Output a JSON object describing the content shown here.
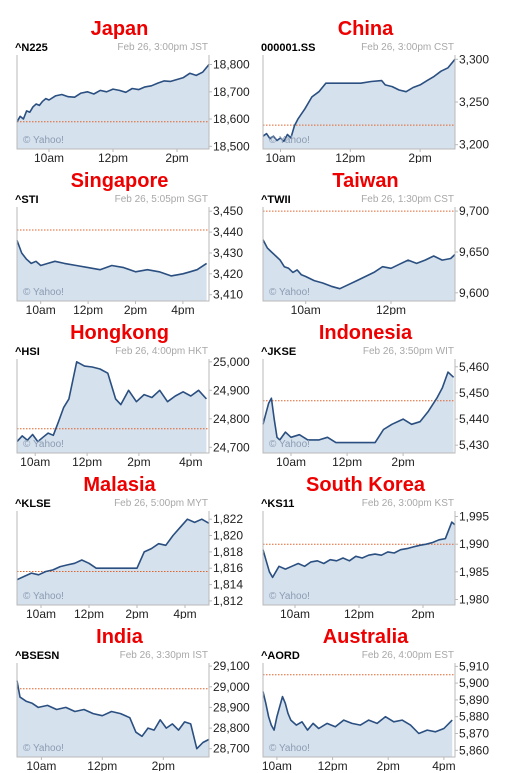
{
  "credit": "© Yahoo!",
  "colors": {
    "line": "#2a4f80",
    "fill": "#d5e1ec",
    "reference": "#e0632e",
    "title": "#ee0000",
    "frame": "#b9b9b9"
  },
  "chart_data": [
    {
      "type": "area",
      "country": "Japan",
      "symbol": "^N225",
      "stamp_date": "Feb 26, 3:00pm",
      "stamp_tz": "JST",
      "x_ticks": [
        {
          "label": "10am",
          "x": 10
        },
        {
          "label": "12pm",
          "x": 12
        },
        {
          "label": "2pm",
          "x": 14
        }
      ],
      "y_ticks": [
        18500,
        18600,
        18700,
        18800
      ],
      "y_tick_labels": [
        "18,500",
        "18,600",
        "18,700",
        "18,800"
      ],
      "ylim": [
        18490,
        18835
      ],
      "xlim": [
        9,
        15
      ],
      "reference": 18590,
      "x": [
        9.0,
        9.1,
        9.2,
        9.3,
        9.4,
        9.5,
        9.6,
        9.7,
        9.8,
        9.9,
        10.0,
        10.2,
        10.4,
        10.6,
        10.8,
        11.0,
        11.2,
        11.4,
        11.6,
        11.8,
        12.0,
        12.2,
        12.4,
        12.6,
        12.8,
        13.0,
        13.2,
        13.4,
        13.6,
        13.8,
        14.0,
        14.2,
        14.4,
        14.6,
        14.8,
        15.0
      ],
      "y": [
        18590,
        18610,
        18600,
        18630,
        18625,
        18645,
        18655,
        18650,
        18665,
        18675,
        18670,
        18685,
        18690,
        18682,
        18680,
        18695,
        18700,
        18692,
        18705,
        18700,
        18710,
        18705,
        18698,
        18712,
        18708,
        18718,
        18722,
        18732,
        18740,
        18738,
        18745,
        18752,
        18768,
        18760,
        18772,
        18800
      ]
    },
    {
      "type": "area",
      "country": "China",
      "symbol": "000001.SS",
      "stamp_date": "Feb 26, 3:00pm",
      "stamp_tz": "CST",
      "x_ticks": [
        {
          "label": "10am",
          "x": 10
        },
        {
          "label": "12pm",
          "x": 12
        },
        {
          "label": "2pm",
          "x": 14
        }
      ],
      "y_ticks": [
        3200,
        3250,
        3300
      ],
      "y_tick_labels": [
        "3,200",
        "3,250",
        "3,300"
      ],
      "ylim": [
        3195,
        3305
      ],
      "xlim": [
        9.5,
        15
      ],
      "reference": 3223,
      "x": [
        9.5,
        9.6,
        9.7,
        9.8,
        9.9,
        10.0,
        10.1,
        10.2,
        10.3,
        10.4,
        10.5,
        10.7,
        10.9,
        11.1,
        11.3,
        11.5,
        11.7,
        12.0,
        12.3,
        12.6,
        12.9,
        13.0,
        13.2,
        13.4,
        13.6,
        13.8,
        14.0,
        14.2,
        14.4,
        14.6,
        14.8,
        15.0
      ],
      "y": [
        3210,
        3213,
        3207,
        3210,
        3205,
        3208,
        3204,
        3212,
        3208,
        3222,
        3230,
        3242,
        3256,
        3262,
        3272,
        3272,
        3272,
        3272,
        3272,
        3274,
        3275,
        3270,
        3268,
        3264,
        3262,
        3267,
        3270,
        3275,
        3280,
        3286,
        3290,
        3300
      ]
    },
    {
      "type": "area",
      "country": "Singapore",
      "symbol": "^STI",
      "stamp_date": "Feb 26, 5:05pm",
      "stamp_tz": "SGT",
      "x_ticks": [
        {
          "label": "10am",
          "x": 10
        },
        {
          "label": "12pm",
          "x": 12
        },
        {
          "label": "2pm",
          "x": 14
        },
        {
          "label": "4pm",
          "x": 16
        }
      ],
      "y_ticks": [
        3410,
        3420,
        3430,
        3440,
        3450
      ],
      "y_tick_labels": [
        "3,410",
        "3,420",
        "3,430",
        "3,440",
        "3,450"
      ],
      "ylim": [
        3407,
        3452
      ],
      "xlim": [
        9,
        17.1
      ],
      "reference": 3441,
      "x": [
        9.0,
        9.2,
        9.4,
        9.6,
        9.8,
        10.0,
        10.3,
        10.6,
        11.0,
        11.5,
        12.0,
        12.5,
        13.0,
        13.5,
        14.0,
        14.5,
        15.0,
        15.5,
        16.0,
        16.3,
        16.6,
        17.0
      ],
      "y": [
        3436,
        3430,
        3427,
        3425,
        3426,
        3424,
        3425,
        3426,
        3425,
        3424,
        3423,
        3422,
        3424,
        3423,
        3421,
        3422,
        3421,
        3419,
        3420,
        3421,
        3422,
        3425
      ]
    },
    {
      "type": "area",
      "country": "Taiwan",
      "symbol": "^TWII",
      "stamp_date": "Feb 26, 1:30pm",
      "stamp_tz": "CST",
      "x_ticks": [
        {
          "label": "10am",
          "x": 10
        },
        {
          "label": "12pm",
          "x": 12
        }
      ],
      "y_ticks": [
        9600,
        9650,
        9700
      ],
      "y_tick_labels": [
        "9,600",
        "9,650",
        "9,700"
      ],
      "ylim": [
        9590,
        9705
      ],
      "xlim": [
        9,
        13.5
      ],
      "reference": 9700,
      "x": [
        9.0,
        9.1,
        9.2,
        9.3,
        9.4,
        9.5,
        9.6,
        9.7,
        9.8,
        9.9,
        10.0,
        10.2,
        10.4,
        10.6,
        10.8,
        11.0,
        11.2,
        11.4,
        11.6,
        11.8,
        12.0,
        12.2,
        12.4,
        12.6,
        12.8,
        13.0,
        13.2,
        13.4,
        13.5
      ],
      "y": [
        9665,
        9655,
        9650,
        9645,
        9640,
        9632,
        9630,
        9625,
        9628,
        9622,
        9620,
        9615,
        9612,
        9608,
        9605,
        9610,
        9615,
        9620,
        9625,
        9632,
        9630,
        9635,
        9640,
        9636,
        9640,
        9645,
        9640,
        9642,
        9647
      ]
    },
    {
      "type": "area",
      "country": "Hongkong",
      "symbol": "^HSI",
      "stamp_date": "Feb 26, 4:00pm",
      "stamp_tz": "HKT",
      "x_ticks": [
        {
          "label": "10am",
          "x": 10
        },
        {
          "label": "12pm",
          "x": 12
        },
        {
          "label": "2pm",
          "x": 14
        },
        {
          "label": "4pm",
          "x": 16
        }
      ],
      "y_ticks": [
        24700,
        24800,
        24900,
        25000
      ],
      "y_tick_labels": [
        "24,700",
        "24,800",
        "24,900",
        "25,000"
      ],
      "ylim": [
        24680,
        25010
      ],
      "xlim": [
        9.3,
        16.7
      ],
      "reference": 24765,
      "x": [
        9.3,
        9.5,
        9.7,
        9.9,
        10.1,
        10.3,
        10.5,
        10.7,
        10.9,
        11.1,
        11.3,
        11.6,
        11.9,
        12.2,
        12.5,
        12.8,
        13.1,
        13.3,
        13.6,
        13.9,
        14.2,
        14.5,
        14.8,
        15.1,
        15.4,
        15.7,
        16.0,
        16.3,
        16.6
      ],
      "y": [
        24720,
        24740,
        24725,
        24745,
        24720,
        24735,
        24750,
        24742,
        24790,
        24840,
        24870,
        25000,
        24985,
        24982,
        24975,
        24960,
        24870,
        24850,
        24900,
        24860,
        24885,
        24875,
        24900,
        24860,
        24880,
        24895,
        24880,
        24900,
        24870
      ]
    },
    {
      "type": "area",
      "country": "Indonesia",
      "symbol": "^JKSE",
      "stamp_date": "Feb 26, 3:50pm",
      "stamp_tz": "WIT",
      "x_ticks": [
        {
          "label": "10am",
          "x": 10
        },
        {
          "label": "12pm",
          "x": 12
        },
        {
          "label": "2pm",
          "x": 14
        }
      ],
      "y_ticks": [
        5430,
        5440,
        5450,
        5460
      ],
      "y_tick_labels": [
        "5,430",
        "5,440",
        "5,450",
        "5,460"
      ],
      "ylim": [
        5427,
        5463
      ],
      "xlim": [
        9,
        15.85
      ],
      "reference": 5447,
      "x": [
        9.0,
        9.1,
        9.2,
        9.3,
        9.4,
        9.5,
        9.6,
        9.8,
        10.0,
        10.3,
        10.6,
        11.0,
        11.3,
        11.6,
        12.0,
        12.5,
        13.0,
        13.3,
        13.6,
        14.0,
        14.3,
        14.6,
        14.9,
        15.2,
        15.4,
        15.6,
        15.8
      ],
      "y": [
        5438,
        5442,
        5446,
        5448,
        5440,
        5433,
        5432,
        5435,
        5433,
        5434,
        5432,
        5432,
        5433,
        5431,
        5431,
        5431,
        5431,
        5436,
        5438,
        5440,
        5438,
        5439,
        5443,
        5448,
        5452,
        5458,
        5456
      ]
    },
    {
      "type": "area",
      "country": "Malasia",
      "symbol": "^KLSE",
      "stamp_date": "Feb 26, 5:00pm",
      "stamp_tz": "MYT",
      "x_ticks": [
        {
          "label": "10am",
          "x": 10
        },
        {
          "label": "12pm",
          "x": 12
        },
        {
          "label": "2pm",
          "x": 14
        },
        {
          "label": "4pm",
          "x": 16
        }
      ],
      "y_ticks": [
        1812,
        1814,
        1816,
        1818,
        1820,
        1822
      ],
      "y_tick_labels": [
        "1,812",
        "1,814",
        "1,816",
        "1,818",
        "1,820",
        "1,822"
      ],
      "ylim": [
        1811.5,
        1823
      ],
      "xlim": [
        9,
        17
      ],
      "reference": 1815.6,
      "x": [
        9.0,
        9.3,
        9.6,
        9.9,
        10.2,
        10.5,
        10.8,
        11.1,
        11.4,
        11.7,
        12.0,
        12.3,
        12.6,
        13.0,
        13.5,
        14.0,
        14.3,
        14.6,
        14.9,
        15.2,
        15.5,
        15.8,
        16.1,
        16.4,
        16.7,
        17.0
      ],
      "y": [
        1814.6,
        1815,
        1815.4,
        1815.2,
        1815.6,
        1815.8,
        1816.2,
        1816.4,
        1816.6,
        1817,
        1816.6,
        1816,
        1816,
        1816,
        1816,
        1816,
        1818,
        1818.4,
        1819,
        1818.8,
        1820,
        1821,
        1822,
        1821.6,
        1822,
        1821.5
      ]
    },
    {
      "type": "area",
      "country": "South Korea",
      "symbol": "^KS11",
      "stamp_date": "Feb 26, 3:00pm",
      "stamp_tz": "KST",
      "x_ticks": [
        {
          "label": "10am",
          "x": 10
        },
        {
          "label": "12pm",
          "x": 12
        },
        {
          "label": "2pm",
          "x": 14
        }
      ],
      "y_ticks": [
        1980,
        1985,
        1990,
        1995
      ],
      "y_tick_labels": [
        "1,980",
        "1,985",
        "1,990",
        "1,995"
      ],
      "ylim": [
        1979,
        1996
      ],
      "xlim": [
        9,
        15
      ],
      "reference": 1990,
      "x": [
        9.0,
        9.1,
        9.2,
        9.3,
        9.4,
        9.5,
        9.7,
        9.9,
        10.1,
        10.3,
        10.5,
        10.7,
        10.9,
        11.1,
        11.3,
        11.5,
        11.7,
        11.9,
        12.1,
        12.3,
        12.5,
        12.7,
        12.9,
        13.1,
        13.3,
        13.5,
        13.7,
        13.9,
        14.1,
        14.3,
        14.5,
        14.7,
        14.9,
        15.0
      ],
      "y": [
        1989,
        1987,
        1985,
        1984,
        1985,
        1986,
        1985.5,
        1986,
        1986.5,
        1986,
        1986.8,
        1987,
        1986.5,
        1987.2,
        1987,
        1987.5,
        1987,
        1987.8,
        1987.5,
        1988,
        1988.2,
        1988,
        1988.6,
        1988.4,
        1989,
        1989.2,
        1989.5,
        1989.8,
        1990,
        1990.3,
        1990.8,
        1991,
        1994,
        1993.5
      ]
    },
    {
      "type": "area",
      "country": "India",
      "symbol": "^BSESN",
      "stamp_date": "Feb 26, 3:30pm",
      "stamp_tz": "IST",
      "x_ticks": [
        {
          "label": "10am",
          "x": 10
        },
        {
          "label": "12pm",
          "x": 12
        },
        {
          "label": "2pm",
          "x": 14
        }
      ],
      "y_ticks": [
        28700,
        28800,
        28900,
        29000,
        29100
      ],
      "y_tick_labels": [
        "28,700",
        "28,800",
        "28,900",
        "29,000",
        "29,100"
      ],
      "ylim": [
        28660,
        29115
      ],
      "xlim": [
        9.2,
        15.5
      ],
      "reference": 28990,
      "x": [
        9.2,
        9.3,
        9.5,
        9.7,
        9.9,
        10.2,
        10.5,
        10.8,
        11.1,
        11.4,
        11.7,
        12.0,
        12.3,
        12.6,
        12.9,
        13.1,
        13.3,
        13.5,
        13.7,
        13.9,
        14.1,
        14.3,
        14.5,
        14.7,
        14.9,
        15.1,
        15.3,
        15.5
      ],
      "y": [
        29030,
        28950,
        28930,
        28920,
        28900,
        28910,
        28890,
        28900,
        28880,
        28890,
        28870,
        28860,
        28880,
        28870,
        28850,
        28780,
        28760,
        28800,
        28790,
        28840,
        28800,
        28820,
        28790,
        28830,
        28820,
        28700,
        28730,
        28745
      ]
    },
    {
      "type": "area",
      "country": "Australia",
      "symbol": "^AORD",
      "stamp_date": "Feb 26, 4:00pm",
      "stamp_tz": "EST",
      "x_ticks": [
        {
          "label": "10am",
          "x": 10
        },
        {
          "label": "12pm",
          "x": 12
        },
        {
          "label": "2pm",
          "x": 14
        },
        {
          "label": "4pm",
          "x": 16
        }
      ],
      "y_ticks": [
        5860,
        5870,
        5880,
        5890,
        5900,
        5910
      ],
      "y_tick_labels": [
        "5,860",
        "5,870",
        "5,880",
        "5,890",
        "5,900",
        "5,910"
      ],
      "ylim": [
        5856,
        5912
      ],
      "xlim": [
        9.5,
        16.4
      ],
      "reference": 5905,
      "x": [
        9.5,
        9.6,
        9.7,
        9.8,
        9.9,
        10.0,
        10.1,
        10.2,
        10.3,
        10.4,
        10.5,
        10.7,
        10.9,
        11.1,
        11.3,
        11.5,
        11.8,
        12.1,
        12.4,
        12.7,
        13.0,
        13.3,
        13.6,
        13.9,
        14.2,
        14.5,
        14.8,
        15.1,
        15.4,
        15.7,
        16.0,
        16.3
      ],
      "y": [
        5895,
        5888,
        5880,
        5875,
        5872,
        5880,
        5886,
        5892,
        5888,
        5882,
        5878,
        5875,
        5877,
        5872,
        5876,
        5873,
        5876,
        5874,
        5878,
        5876,
        5875,
        5878,
        5876,
        5880,
        5877,
        5878,
        5875,
        5870,
        5872,
        5871,
        5873,
        5878
      ]
    }
  ]
}
